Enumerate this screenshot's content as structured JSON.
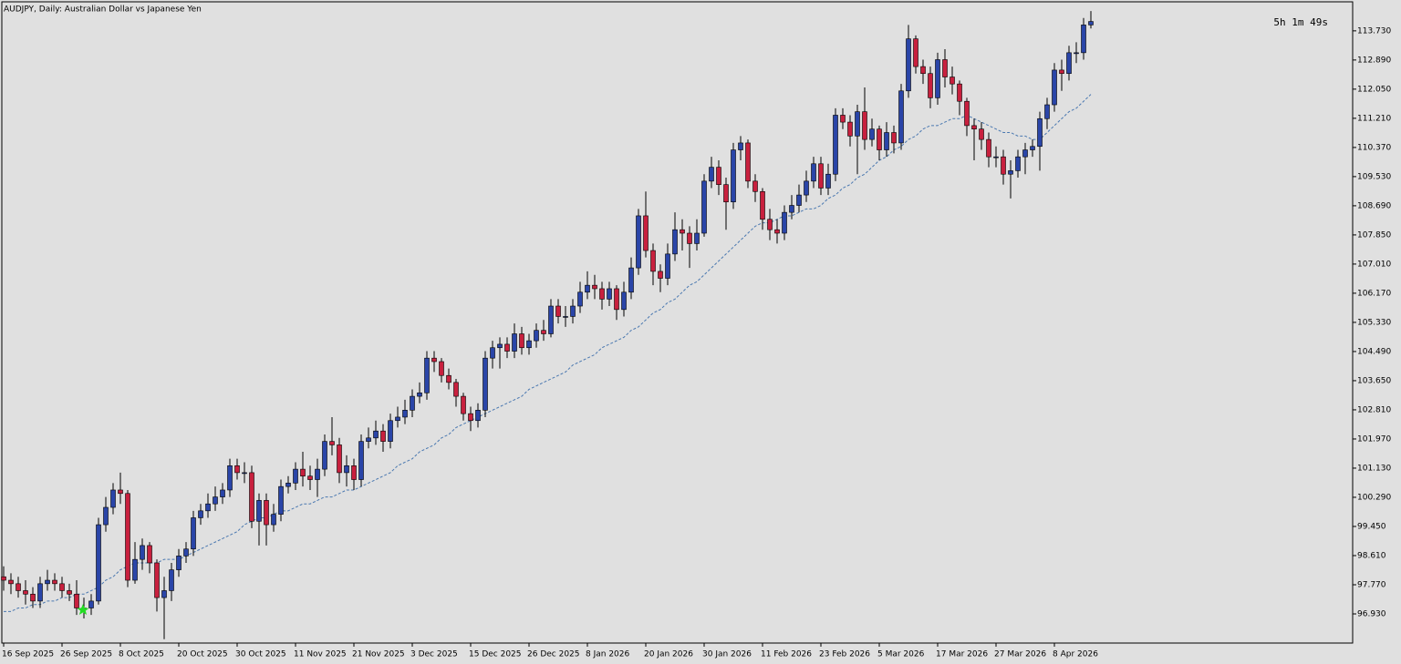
{
  "chart_data": {
    "type": "candlestick",
    "title": "AUDJPY, Daily:  Australian Dollar vs Japanese Yen",
    "timer": "5h 1m 49s",
    "categories": [
      "16 Sep 2025",
      null,
      null,
      null,
      null,
      null,
      null,
      null,
      "26 Sep 2025",
      null,
      null,
      null,
      null,
      null,
      null,
      null,
      "8 Oct 2025",
      null,
      null,
      null,
      null,
      null,
      null,
      null,
      "20 Oct 2025",
      null,
      null,
      null,
      null,
      null,
      null,
      null,
      "30 Oct 2025",
      null,
      null,
      null,
      null,
      null,
      null,
      null,
      "11 Nov 2025",
      null,
      null,
      null,
      null,
      null,
      null,
      null,
      "21 Nov 2025",
      null,
      null,
      null,
      null,
      null,
      null,
      null,
      "3 Dec 2025",
      null,
      null,
      null,
      null,
      null,
      null,
      null,
      "15 Dec 2025",
      null,
      null,
      null,
      null,
      null,
      null,
      null,
      "26 Dec 2025",
      null,
      null,
      null,
      null,
      null,
      null,
      null,
      "8 Jan 2026",
      null,
      null,
      null,
      null,
      null,
      null,
      null,
      "20 Jan 2026",
      null,
      null,
      null,
      null,
      null,
      null,
      null,
      "30 Jan 2026",
      null,
      null,
      null,
      null,
      null,
      null,
      null,
      "11 Feb 2026",
      null,
      null,
      null,
      null,
      null,
      null,
      null,
      "23 Feb 2026",
      null,
      null,
      null,
      null,
      null,
      null,
      null,
      "5 Mar 2026",
      null,
      null,
      null,
      null,
      null,
      null,
      null,
      "17 Mar 2026",
      null,
      null,
      null,
      null,
      null,
      null,
      null,
      "27 Mar 2026",
      null,
      null,
      null,
      null,
      null,
      null,
      null,
      "8 Apr 2026",
      null,
      null,
      null,
      null,
      null
    ],
    "open": [
      98.0,
      97.9,
      97.8,
      97.6,
      97.5,
      97.3,
      97.8,
      97.9,
      97.8,
      97.6,
      97.5,
      97.1,
      97.1,
      97.3,
      99.5,
      100.0,
      100.5,
      100.4,
      97.9,
      98.5,
      98.9,
      98.4,
      97.4,
      97.6,
      98.2,
      98.6,
      98.8,
      99.7,
      99.9,
      100.1,
      100.3,
      100.5,
      101.2,
      101.0,
      101.0,
      99.6,
      100.2,
      99.5,
      99.8,
      100.6,
      100.7,
      101.1,
      100.9,
      100.8,
      101.1,
      101.9,
      101.8,
      101.0,
      101.2,
      100.8,
      101.9,
      102.0,
      102.2,
      101.9,
      102.5,
      102.6,
      102.8,
      103.2,
      103.3,
      104.3,
      104.2,
      103.8,
      103.6,
      103.2,
      102.7,
      102.5,
      102.8,
      104.3,
      104.6,
      104.7,
      104.5,
      105.0,
      104.6,
      104.8,
      105.1,
      105.0,
      105.8,
      105.5,
      105.5,
      105.8,
      106.2,
      106.4,
      106.3,
      106.0,
      106.3,
      105.7,
      106.2,
      106.9,
      108.4,
      107.4,
      106.8,
      106.6,
      107.3,
      108.0,
      107.9,
      107.6,
      107.9,
      109.4,
      109.8,
      109.3,
      108.8,
      110.3,
      110.5,
      109.4,
      109.1,
      108.3,
      108.0,
      107.9,
      108.5,
      108.7,
      109.0,
      109.4,
      109.9,
      109.2,
      109.6,
      111.3,
      111.1,
      110.7,
      111.4,
      110.6,
      110.9,
      110.3,
      110.8,
      110.5,
      112.0,
      113.5,
      112.7,
      112.5,
      111.8,
      112.9,
      112.4,
      112.2,
      111.7,
      111.0,
      110.9,
      110.6,
      110.1,
      110.1,
      109.6,
      109.7,
      110.1,
      110.3,
      110.4,
      111.2,
      111.6,
      112.6,
      112.5,
      113.1,
      113.1,
      113.9
    ],
    "high": [
      98.3,
      98.1,
      98.0,
      97.9,
      97.7,
      98.0,
      98.2,
      98.1,
      98.0,
      97.8,
      97.9,
      97.4,
      97.5,
      99.7,
      100.3,
      100.7,
      101.0,
      100.5,
      99.0,
      99.1,
      99.0,
      98.5,
      98.0,
      98.4,
      98.8,
      99.0,
      99.9,
      100.1,
      100.4,
      100.6,
      100.7,
      101.4,
      101.4,
      101.3,
      101.2,
      100.4,
      100.4,
      100.1,
      100.8,
      100.9,
      101.3,
      101.6,
      101.2,
      101.4,
      102.1,
      102.6,
      102.0,
      101.5,
      101.4,
      102.1,
      102.3,
      102.5,
      102.4,
      102.7,
      102.9,
      103.1,
      103.4,
      103.6,
      104.5,
      104.5,
      104.3,
      104.0,
      103.7,
      103.3,
      102.9,
      103.0,
      104.5,
      104.8,
      104.9,
      104.9,
      105.3,
      105.2,
      105.0,
      105.3,
      105.4,
      106.0,
      106.0,
      105.8,
      106.0,
      106.5,
      106.8,
      106.7,
      106.5,
      106.5,
      106.4,
      106.5,
      107.2,
      108.6,
      109.1,
      107.6,
      107.0,
      107.6,
      108.5,
      108.3,
      108.1,
      108.3,
      109.6,
      110.1,
      110.0,
      109.5,
      110.5,
      110.7,
      110.6,
      109.6,
      109.2,
      108.6,
      108.3,
      108.7,
      109.0,
      109.3,
      109.7,
      110.1,
      110.1,
      109.9,
      111.5,
      111.5,
      111.3,
      111.6,
      112.1,
      111.2,
      111.0,
      111.1,
      111.0,
      112.2,
      113.9,
      113.6,
      112.9,
      112.7,
      113.1,
      113.2,
      112.7,
      112.3,
      111.8,
      111.2,
      111.1,
      110.8,
      110.4,
      110.3,
      110.0,
      110.3,
      110.5,
      110.6,
      111.4,
      111.8,
      112.8,
      112.9,
      113.3,
      113.4,
      114.1,
      114.3
    ],
    "low": [
      97.6,
      97.5,
      97.4,
      97.2,
      97.1,
      97.1,
      97.6,
      97.6,
      97.4,
      97.3,
      96.9,
      96.8,
      96.9,
      97.2,
      99.3,
      99.8,
      100.1,
      97.7,
      97.8,
      98.2,
      98.1,
      97.0,
      96.2,
      97.3,
      98.0,
      98.4,
      98.6,
      99.5,
      99.7,
      99.9,
      100.1,
      100.3,
      100.8,
      100.7,
      99.4,
      98.9,
      98.9,
      99.3,
      99.6,
      100.4,
      100.5,
      100.6,
      100.5,
      100.3,
      100.9,
      101.5,
      100.7,
      100.6,
      100.5,
      100.6,
      101.7,
      101.8,
      101.6,
      101.7,
      102.3,
      102.4,
      102.6,
      103.0,
      103.1,
      103.9,
      103.6,
      103.4,
      102.9,
      102.5,
      102.2,
      102.3,
      102.6,
      104.0,
      104.0,
      104.3,
      104.3,
      104.4,
      104.4,
      104.6,
      104.8,
      104.9,
      105.3,
      105.2,
      105.3,
      105.6,
      106.0,
      106.0,
      105.7,
      105.8,
      105.4,
      105.5,
      106.0,
      106.7,
      107.2,
      106.4,
      106.2,
      106.4,
      107.1,
      107.4,
      106.9,
      107.4,
      107.8,
      109.2,
      109.0,
      108.0,
      108.6,
      110.0,
      109.2,
      108.8,
      108.0,
      107.7,
      107.6,
      107.7,
      108.3,
      108.5,
      108.8,
      109.2,
      109.0,
      109.0,
      109.4,
      110.9,
      110.4,
      109.6,
      110.3,
      110.4,
      110.0,
      110.1,
      110.2,
      110.3,
      111.8,
      112.5,
      112.2,
      111.5,
      111.6,
      112.1,
      111.9,
      111.3,
      110.7,
      110.0,
      110.3,
      109.8,
      109.8,
      109.3,
      108.9,
      109.5,
      109.6,
      110.1,
      109.7,
      110.9,
      111.4,
      112.0,
      112.3,
      112.8,
      112.9,
      113.8
    ],
    "close": [
      97.9,
      97.8,
      97.6,
      97.5,
      97.3,
      97.8,
      97.9,
      97.8,
      97.6,
      97.5,
      97.1,
      97.1,
      97.3,
      99.5,
      100.0,
      100.5,
      100.4,
      97.9,
      98.5,
      98.9,
      98.4,
      97.4,
      97.6,
      98.2,
      98.6,
      98.8,
      99.7,
      99.9,
      100.1,
      100.3,
      100.5,
      101.2,
      101.0,
      101.0,
      99.6,
      100.2,
      99.5,
      99.8,
      100.6,
      100.7,
      101.1,
      100.9,
      100.8,
      101.1,
      101.9,
      101.8,
      101.0,
      101.2,
      100.8,
      101.9,
      102.0,
      102.2,
      101.9,
      102.5,
      102.6,
      102.8,
      103.2,
      103.3,
      104.3,
      104.2,
      103.8,
      103.6,
      103.2,
      102.7,
      102.5,
      102.8,
      104.3,
      104.6,
      104.7,
      104.5,
      105.0,
      104.6,
      104.8,
      105.1,
      105.0,
      105.8,
      105.5,
      105.5,
      105.8,
      106.2,
      106.4,
      106.3,
      106.0,
      106.3,
      105.7,
      106.2,
      106.9,
      108.4,
      107.4,
      106.8,
      106.6,
      107.3,
      108.0,
      107.9,
      107.6,
      107.9,
      109.4,
      109.8,
      109.3,
      108.8,
      110.3,
      110.5,
      109.4,
      109.1,
      108.3,
      108.0,
      107.9,
      108.5,
      108.7,
      109.0,
      109.4,
      109.9,
      109.2,
      109.6,
      111.3,
      111.1,
      110.7,
      111.4,
      110.6,
      110.9,
      110.3,
      110.8,
      110.5,
      112.0,
      113.5,
      112.7,
      112.5,
      111.8,
      112.9,
      112.4,
      112.2,
      111.7,
      111.0,
      110.9,
      110.6,
      110.1,
      110.1,
      109.6,
      109.7,
      110.1,
      110.3,
      110.4,
      111.2,
      111.6,
      112.6,
      112.5,
      113.1,
      113.1,
      113.9,
      114.0
    ],
    "up_color": "#2a45a8",
    "down_color": "#c8203e",
    "ma": {
      "color": "#4a78b0",
      "values": [
        97.0,
        97.0,
        97.1,
        97.1,
        97.2,
        97.2,
        97.3,
        97.3,
        97.4,
        97.4,
        97.5,
        97.5,
        97.6,
        97.7,
        97.9,
        98.0,
        98.2,
        98.3,
        98.4,
        98.4,
        98.4,
        98.4,
        98.5,
        98.5,
        98.5,
        98.6,
        98.7,
        98.8,
        98.9,
        99.0,
        99.1,
        99.2,
        99.3,
        99.5,
        99.6,
        99.7,
        99.7,
        99.8,
        99.9,
        99.9,
        100.0,
        100.1,
        100.1,
        100.2,
        100.3,
        100.3,
        100.4,
        100.5,
        100.5,
        100.6,
        100.7,
        100.8,
        100.9,
        101.0,
        101.2,
        101.3,
        101.4,
        101.6,
        101.7,
        101.8,
        102.0,
        102.1,
        102.3,
        102.4,
        102.5,
        102.6,
        102.7,
        102.8,
        102.9,
        103.0,
        103.1,
        103.2,
        103.4,
        103.5,
        103.6,
        103.7,
        103.8,
        103.9,
        104.1,
        104.2,
        104.3,
        104.4,
        104.6,
        104.7,
        104.8,
        104.9,
        105.1,
        105.2,
        105.4,
        105.6,
        105.7,
        105.9,
        106.0,
        106.2,
        106.4,
        106.5,
        106.7,
        106.9,
        107.1,
        107.3,
        107.5,
        107.7,
        107.9,
        108.1,
        108.2,
        108.2,
        108.3,
        108.4,
        108.4,
        108.5,
        108.6,
        108.6,
        108.7,
        108.9,
        109.0,
        109.2,
        109.3,
        109.5,
        109.6,
        109.8,
        110.0,
        110.1,
        110.3,
        110.4,
        110.6,
        110.7,
        110.9,
        111.0,
        111.0,
        111.1,
        111.2,
        111.2,
        111.3,
        111.2,
        111.1,
        111.0,
        110.9,
        110.8,
        110.8,
        110.7,
        110.7,
        110.6,
        110.6,
        110.8,
        111.0,
        111.2,
        111.4,
        111.5,
        111.7,
        111.9
      ]
    },
    "ylim": [
      96.09,
      114.54
    ],
    "yticks": [
      {
        "value": 113.73,
        "label": "113.730"
      },
      {
        "value": 112.89,
        "label": "112.890"
      },
      {
        "value": 112.05,
        "label": "112.050"
      },
      {
        "value": 111.21,
        "label": "111.210"
      },
      {
        "value": 110.37,
        "label": "110.370"
      },
      {
        "value": 109.53,
        "label": "109.530"
      },
      {
        "value": 108.69,
        "label": "108.690"
      },
      {
        "value": 107.85,
        "label": "107.850"
      },
      {
        "value": 107.01,
        "label": "107.010"
      },
      {
        "value": 106.17,
        "label": "106.170"
      },
      {
        "value": 105.33,
        "label": "105.330"
      },
      {
        "value": 104.49,
        "label": "104.490"
      },
      {
        "value": 103.65,
        "label": "103.650"
      },
      {
        "value": 102.81,
        "label": "102.810"
      },
      {
        "value": 101.97,
        "label": "101.970"
      },
      {
        "value": 101.13,
        "label": "101.130"
      },
      {
        "value": 100.29,
        "label": "100.290"
      },
      {
        "value": 99.45,
        "label": "99.450"
      },
      {
        "value": 98.61,
        "label": "98.610"
      },
      {
        "value": 97.77,
        "label": "97.770"
      },
      {
        "value": 96.93,
        "label": "96.930"
      }
    ],
    "grid": false
  }
}
